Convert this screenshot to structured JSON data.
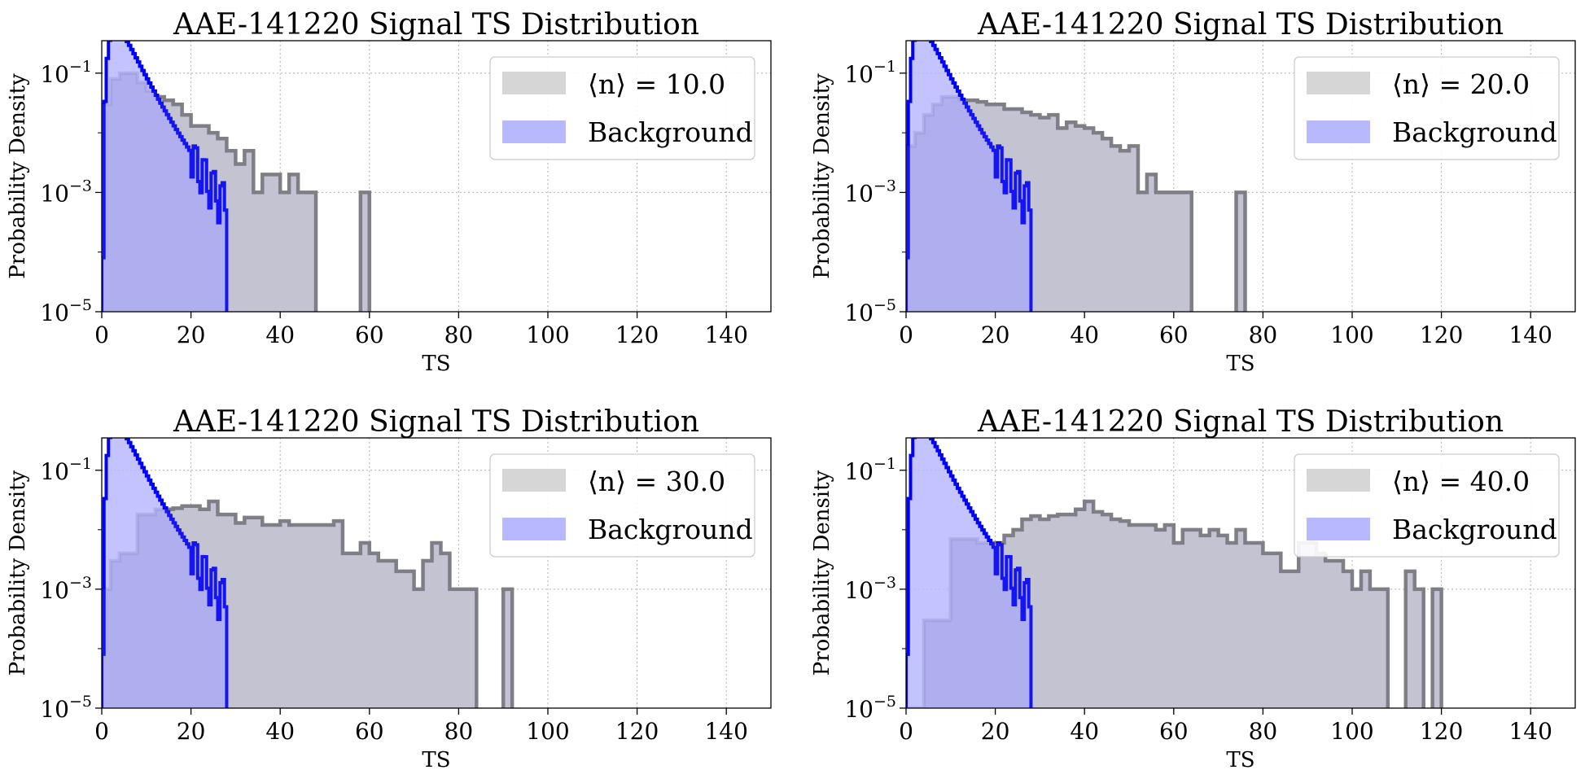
{
  "figure": {
    "colors": {
      "signal_fill": "#d6d6d6",
      "signal_line": "#808080",
      "background_fill": "#b8b8ff",
      "background_line": "#0000ff"
    }
  },
  "chart_data": [
    {
      "type": "histogram-step",
      "title": "AAE-141220 Signal TS Distribution",
      "xlabel": "TS",
      "ylabel": "Probability Density",
      "xlim": [
        0,
        150
      ],
      "ylim": [
        1e-05,
        0.35
      ],
      "yscale": "log",
      "xticks": [
        "0",
        "20",
        "40",
        "60",
        "80",
        "100",
        "120",
        "140"
      ],
      "yticks": [
        "10^-1",
        "10^-3",
        "10^-5"
      ],
      "grid": true,
      "legend_position": "top-right",
      "series": [
        {
          "name": "⟨n⟩ = 10.0",
          "role": "signal",
          "bin_width": 2,
          "edges": [
            0,
            2,
            4,
            6,
            8,
            10,
            12,
            14,
            16,
            18,
            20,
            22,
            24,
            26,
            28,
            30,
            32,
            34,
            36,
            38,
            40,
            42,
            44,
            46,
            58,
            60
          ],
          "values": [
            0.03,
            0.08,
            0.1,
            0.1,
            0.07,
            0.05,
            0.04,
            0.035,
            0.03,
            0.02,
            0.013,
            0.013,
            0.01,
            0.008,
            0.005,
            0.003,
            0.005,
            0.001,
            0.002,
            0.002,
            0.001,
            0.002,
            0.001,
            0.001,
            0.001
          ]
        },
        {
          "name": "Background",
          "role": "background",
          "peak_ts": 4.5,
          "peak_density": 0.16,
          "max_ts": 28
        }
      ]
    },
    {
      "type": "histogram-step",
      "title": "AAE-141220 Signal TS Distribution",
      "xlabel": "TS",
      "ylabel": "Probability Density",
      "xlim": [
        0,
        150
      ],
      "ylim": [
        1e-05,
        0.35
      ],
      "yscale": "log",
      "xticks": [
        "0",
        "20",
        "40",
        "60",
        "80",
        "100",
        "120",
        "140"
      ],
      "yticks": [
        "10^-1",
        "10^-3",
        "10^-5"
      ],
      "grid": true,
      "legend_position": "top-right",
      "series": [
        {
          "name": "⟨n⟩ = 20.0",
          "role": "signal",
          "bin_width": 2,
          "edges": [
            0,
            2,
            4,
            6,
            8,
            10,
            12,
            14,
            16,
            18,
            20,
            22,
            24,
            26,
            28,
            30,
            32,
            34,
            36,
            38,
            40,
            42,
            44,
            46,
            48,
            50,
            52,
            54,
            56,
            58,
            60,
            62,
            74,
            76
          ],
          "values": [
            0.006,
            0.01,
            0.02,
            0.03,
            0.04,
            0.04,
            0.035,
            0.035,
            0.033,
            0.03,
            0.03,
            0.025,
            0.025,
            0.022,
            0.02,
            0.018,
            0.02,
            0.012,
            0.015,
            0.013,
            0.012,
            0.01,
            0.008,
            0.006,
            0.005,
            0.006,
            0.001,
            0.002,
            0.001,
            0.001,
            0.001,
            0.001,
            0.001
          ]
        },
        {
          "name": "Background",
          "role": "background",
          "peak_ts": 4.5,
          "peak_density": 0.16,
          "max_ts": 28
        }
      ]
    },
    {
      "type": "histogram-step",
      "title": "AAE-141220 Signal TS Distribution",
      "xlabel": "TS",
      "ylabel": "Probability Density",
      "xlim": [
        0,
        150
      ],
      "ylim": [
        1e-05,
        0.35
      ],
      "yscale": "log",
      "xticks": [
        "0",
        "20",
        "40",
        "60",
        "80",
        "100",
        "120",
        "140"
      ],
      "yticks": [
        "10^-1",
        "10^-3",
        "10^-5"
      ],
      "grid": true,
      "legend_position": "top-right",
      "series": [
        {
          "name": "⟨n⟩ = 30.0",
          "role": "signal",
          "bin_width": 2,
          "edges": [
            0,
            2,
            4,
            6,
            8,
            10,
            12,
            14,
            16,
            18,
            20,
            22,
            24,
            26,
            28,
            30,
            32,
            34,
            36,
            38,
            40,
            42,
            44,
            46,
            48,
            50,
            52,
            54,
            56,
            58,
            60,
            62,
            64,
            66,
            68,
            70,
            72,
            74,
            76,
            78,
            80,
            82,
            90,
            92
          ],
          "values": [
            0.001,
            0.003,
            0.004,
            0.004,
            0.018,
            0.018,
            0.022,
            0.022,
            0.023,
            0.025,
            0.025,
            0.022,
            0.03,
            0.018,
            0.018,
            0.013,
            0.016,
            0.016,
            0.012,
            0.012,
            0.014,
            0.012,
            0.012,
            0.012,
            0.012,
            0.012,
            0.014,
            0.004,
            0.004,
            0.006,
            0.004,
            0.003,
            0.003,
            0.002,
            0.002,
            0.001,
            0.003,
            0.006,
            0.004,
            0.001,
            0.001,
            0.001,
            0.001
          ]
        },
        {
          "name": "Background",
          "role": "background",
          "peak_ts": 4.5,
          "peak_density": 0.16,
          "max_ts": 28
        }
      ]
    },
    {
      "type": "histogram-step",
      "title": "AAE-141220 Signal TS Distribution",
      "xlabel": "TS",
      "ylabel": "Probability Density",
      "xlim": [
        0,
        150
      ],
      "ylim": [
        1e-05,
        0.35
      ],
      "yscale": "log",
      "xticks": [
        "0",
        "20",
        "40",
        "60",
        "80",
        "100",
        "120",
        "140"
      ],
      "yticks": [
        "10^-1",
        "10^-3",
        "10^-5"
      ],
      "grid": true,
      "legend_position": "top-right",
      "series": [
        {
          "name": "⟨n⟩ = 40.0",
          "role": "signal",
          "bin_width": 2,
          "edges": [
            0,
            2,
            4,
            6,
            8,
            10,
            12,
            14,
            16,
            18,
            20,
            22,
            24,
            26,
            28,
            30,
            32,
            34,
            36,
            38,
            40,
            42,
            44,
            46,
            48,
            50,
            52,
            54,
            56,
            58,
            60,
            62,
            64,
            66,
            68,
            70,
            72,
            74,
            76,
            78,
            80,
            82,
            84,
            86,
            88,
            90,
            92,
            94,
            96,
            98,
            100,
            102,
            104,
            106,
            112,
            114,
            118,
            120
          ],
          "values": [
            1e-05,
            1e-05,
            0.0003,
            0.0003,
            0.0003,
            0.007,
            0.007,
            0.007,
            0.006,
            0.006,
            0.006,
            0.008,
            0.01,
            0.015,
            0.017,
            0.015,
            0.017,
            0.018,
            0.018,
            0.022,
            0.03,
            0.02,
            0.018,
            0.015,
            0.014,
            0.012,
            0.012,
            0.012,
            0.01,
            0.012,
            0.006,
            0.01,
            0.01,
            0.008,
            0.01,
            0.008,
            0.006,
            0.01,
            0.006,
            0.006,
            0.004,
            0.004,
            0.002,
            0.002,
            0.006,
            0.006,
            0.004,
            0.003,
            0.003,
            0.002,
            0.001,
            0.002,
            0.001,
            0.001,
            0.002,
            0.001,
            0.001
          ]
        },
        {
          "name": "Background",
          "role": "background",
          "peak_ts": 4.5,
          "peak_density": 0.16,
          "max_ts": 28
        }
      ]
    }
  ]
}
